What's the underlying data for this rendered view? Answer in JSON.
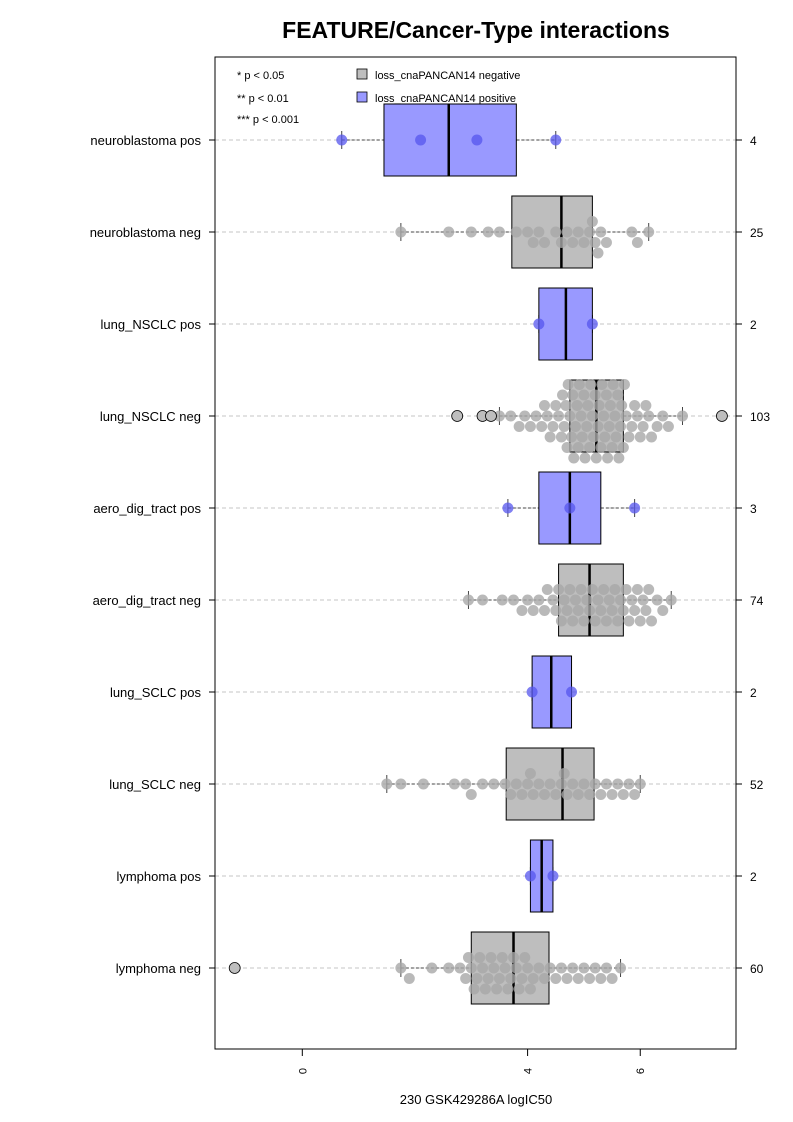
{
  "chart_data": {
    "type": "boxplot",
    "title": "FEATURE/Cancer-Type interactions",
    "xlabel": "230 GSK429286A logIC50",
    "xlim": [
      -1.55,
      7.7
    ],
    "xticks": [
      0,
      4,
      6
    ],
    "xtick_labels": [
      "0",
      "4",
      "6"
    ],
    "grid": "horizontal dashed",
    "significance_legend": [
      "* p < 0.05",
      "** p < 0.01",
      "*** p < 0.001"
    ],
    "legend": {
      "position": "top",
      "items": [
        {
          "label": "loss_cnaPANCAN14 negative",
          "color": "#bebebe"
        },
        {
          "label": "loss_cnaPANCAN14 positive",
          "color": "#9999ff"
        }
      ]
    },
    "colors": {
      "negative_box": "#bebebe",
      "positive_box": "#9999ff",
      "negative_point": "#a8a8a8",
      "positive_point": "#5555ee",
      "outlier_fill": "#bebebe"
    },
    "categories": [
      {
        "label": "neuroblastoma pos",
        "n": "4",
        "status": "positive",
        "q1": 1.45,
        "median": 2.6,
        "q3": 3.8,
        "wlo": 0.7,
        "whi": 4.5,
        "points": [
          0.7,
          2.1,
          3.1,
          4.5
        ],
        "outliers": []
      },
      {
        "label": "neuroblastoma neg",
        "n": "25",
        "status": "negative",
        "q1": 3.72,
        "median": 4.6,
        "q3": 5.15,
        "wlo": 1.75,
        "whi": 6.15,
        "points": [
          1.75,
          2.6,
          3.0,
          3.3,
          3.5,
          3.8,
          4.0,
          4.1,
          4.2,
          4.3,
          4.5,
          4.6,
          4.7,
          4.8,
          4.9,
          5.0,
          5.1,
          5.15,
          5.2,
          5.25,
          5.3,
          5.4,
          5.85,
          5.95,
          6.15
        ],
        "outliers": []
      },
      {
        "label": "lung_NSCLC pos",
        "n": "2",
        "status": "positive",
        "q1": 4.2,
        "median": 4.68,
        "q3": 5.15,
        "wlo": 4.2,
        "whi": 5.15,
        "points": [
          4.2,
          5.15
        ],
        "outliers": []
      },
      {
        "label": "lung_NSCLC neg",
        "n": "103",
        "status": "negative",
        "q1": 4.75,
        "median": 5.22,
        "q3": 5.7,
        "wlo": 3.5,
        "whi": 6.75,
        "points": [
          3.5,
          3.7,
          3.85,
          3.95,
          4.05,
          4.15,
          4.25,
          4.3,
          4.35,
          4.4,
          4.45,
          4.5,
          4.55,
          4.6,
          4.62,
          4.65,
          4.68,
          4.7,
          4.72,
          4.75,
          4.78,
          4.8,
          4.82,
          4.85,
          4.88,
          4.9,
          4.92,
          4.95,
          4.97,
          5.0,
          5.02,
          5.05,
          5.07,
          5.1,
          5.12,
          5.15,
          5.17,
          5.2,
          5.22,
          5.25,
          5.27,
          5.3,
          5.32,
          5.35,
          5.37,
          5.4,
          5.42,
          5.45,
          5.47,
          5.5,
          5.52,
          5.55,
          5.57,
          5.6,
          5.62,
          5.65,
          5.67,
          5.7,
          5.72,
          5.75,
          5.8,
          5.85,
          5.9,
          5.95,
          6.0,
          6.05,
          6.1,
          6.15,
          6.2,
          6.3,
          6.4,
          6.5,
          6.75
        ],
        "outliers": [
          2.75,
          3.2,
          3.35,
          7.45
        ]
      },
      {
        "label": "aero_dig_tract pos",
        "n": "3",
        "status": "positive",
        "q1": 4.2,
        "median": 4.75,
        "q3": 5.3,
        "wlo": 3.65,
        "whi": 5.9,
        "points": [
          3.65,
          4.75,
          5.9
        ],
        "outliers": []
      },
      {
        "label": "aero_dig_tract neg",
        "n": "74",
        "status": "negative",
        "q1": 4.55,
        "median": 5.1,
        "q3": 5.7,
        "wlo": 2.95,
        "whi": 6.55,
        "points": [
          2.95,
          3.2,
          3.55,
          3.75,
          3.9,
          4.0,
          4.1,
          4.2,
          4.3,
          4.35,
          4.45,
          4.5,
          4.55,
          4.6,
          4.65,
          4.7,
          4.75,
          4.8,
          4.85,
          4.9,
          4.95,
          5.0,
          5.05,
          5.1,
          5.15,
          5.2,
          5.25,
          5.3,
          5.35,
          5.4,
          5.45,
          5.5,
          5.55,
          5.6,
          5.65,
          5.7,
          5.75,
          5.8,
          5.85,
          5.9,
          5.95,
          6.0,
          6.05,
          6.1,
          6.15,
          6.2,
          6.3,
          6.4,
          6.55
        ],
        "outliers": []
      },
      {
        "label": "lung_SCLC pos",
        "n": "2",
        "status": "positive",
        "q1": 4.08,
        "median": 4.42,
        "q3": 4.78,
        "wlo": 4.08,
        "whi": 4.78,
        "points": [
          4.08,
          4.78
        ],
        "outliers": []
      },
      {
        "label": "lung_SCLC neg",
        "n": "52",
        "status": "negative",
        "q1": 3.62,
        "median": 4.62,
        "q3": 5.18,
        "wlo": 1.5,
        "whi": 6.0,
        "points": [
          1.5,
          1.75,
          2.15,
          2.7,
          2.9,
          3.0,
          3.2,
          3.4,
          3.6,
          3.7,
          3.8,
          3.9,
          4.0,
          4.05,
          4.1,
          4.2,
          4.3,
          4.4,
          4.5,
          4.6,
          4.65,
          4.7,
          4.8,
          4.9,
          5.0,
          5.1,
          5.2,
          5.3,
          5.4,
          5.5,
          5.6,
          5.7,
          5.8,
          5.9,
          6.0
        ],
        "outliers": []
      },
      {
        "label": "lymphoma pos",
        "n": "2",
        "status": "positive",
        "q1": 4.05,
        "median": 4.25,
        "q3": 4.45,
        "wlo": 4.05,
        "whi": 4.45,
        "points": [
          4.05,
          4.45
        ],
        "outliers": []
      },
      {
        "label": "lymphoma neg",
        "n": "60",
        "status": "negative",
        "q1": 3.0,
        "median": 3.75,
        "q3": 4.38,
        "wlo": 1.75,
        "whi": 5.65,
        "points": [
          1.75,
          1.9,
          2.3,
          2.6,
          2.8,
          2.9,
          2.95,
          3.0,
          3.05,
          3.1,
          3.15,
          3.2,
          3.25,
          3.3,
          3.35,
          3.4,
          3.45,
          3.5,
          3.55,
          3.6,
          3.65,
          3.7,
          3.75,
          3.8,
          3.85,
          3.9,
          3.95,
          4.0,
          4.05,
          4.1,
          4.2,
          4.3,
          4.4,
          4.5,
          4.6,
          4.7,
          4.8,
          4.9,
          5.0,
          5.1,
          5.2,
          5.3,
          5.4,
          5.5,
          5.65
        ],
        "outliers": [
          -1.2
        ]
      }
    ]
  }
}
